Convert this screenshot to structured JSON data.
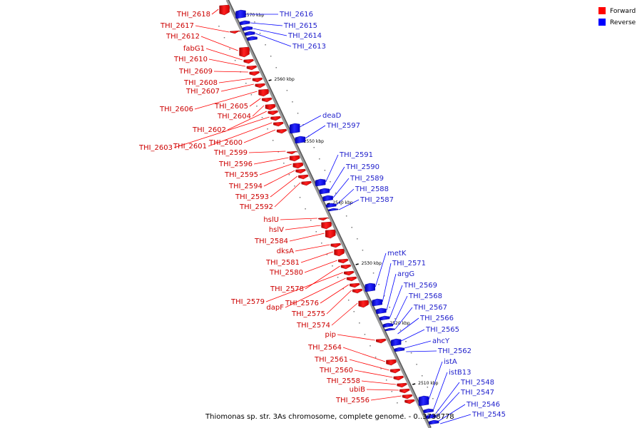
{
  "caption": "Thiomonas sp. str. 3As chromosome, complete genome. - 0..3738778",
  "legend": [
    {
      "label": "Forward",
      "color": "#ff0000"
    },
    {
      "label": "Reverse",
      "color": "#0000ff"
    }
  ],
  "colors": {
    "forward": "#ff0000",
    "reverse": "#0000ff",
    "backbone": "#999999",
    "forward_label": "#cc0000",
    "reverse_label": "#2222cc"
  },
  "ticks": [
    "2570 kbp",
    "2560 kbp",
    "2550 kbp",
    "2540 kbp",
    "2530 kbp",
    "2520 kbp",
    "2510 kbp"
  ],
  "forward_genes": [
    "THI_2618",
    "THI_2617",
    "THI_2612",
    "fabG1",
    "THI_2610",
    "THI_2609",
    "THI_2608",
    "THI_2607",
    "THI_2606",
    "THI_2605",
    "THI_2604",
    "THI_2602",
    "THI_2603",
    "THI_2601",
    "THI_2600",
    "THI_2599",
    "THI_2596",
    "THI_2595",
    "THI_2594",
    "THI_2593",
    "THI_2592",
    "hslU",
    "hslV",
    "THI_2584",
    "dksA",
    "THI_2581",
    "THI_2580",
    "THI_2578",
    "THI_2579",
    "dapF",
    "THI_2576",
    "THI_2575",
    "THI_2574",
    "pip",
    "THI_2564",
    "THI_2561",
    "THI_2560",
    "THI_2558",
    "ubiB",
    "THI_2556"
  ],
  "reverse_genes": [
    "THI_2616",
    "THI_2615",
    "THI_2614",
    "THI_2613",
    "deaD",
    "THI_2597",
    "THI_2591",
    "THI_2590",
    "THI_2589",
    "THI_2588",
    "THI_2587",
    "metK",
    "THI_2571",
    "argG",
    "THI_2569",
    "THI_2568",
    "THI_2567",
    "THI_2566",
    "THI_2565",
    "ahcY",
    "THI_2562",
    "istA",
    "istB13",
    "THI_2548",
    "THI_2547",
    "THI_2546",
    "THI_2545"
  ]
}
